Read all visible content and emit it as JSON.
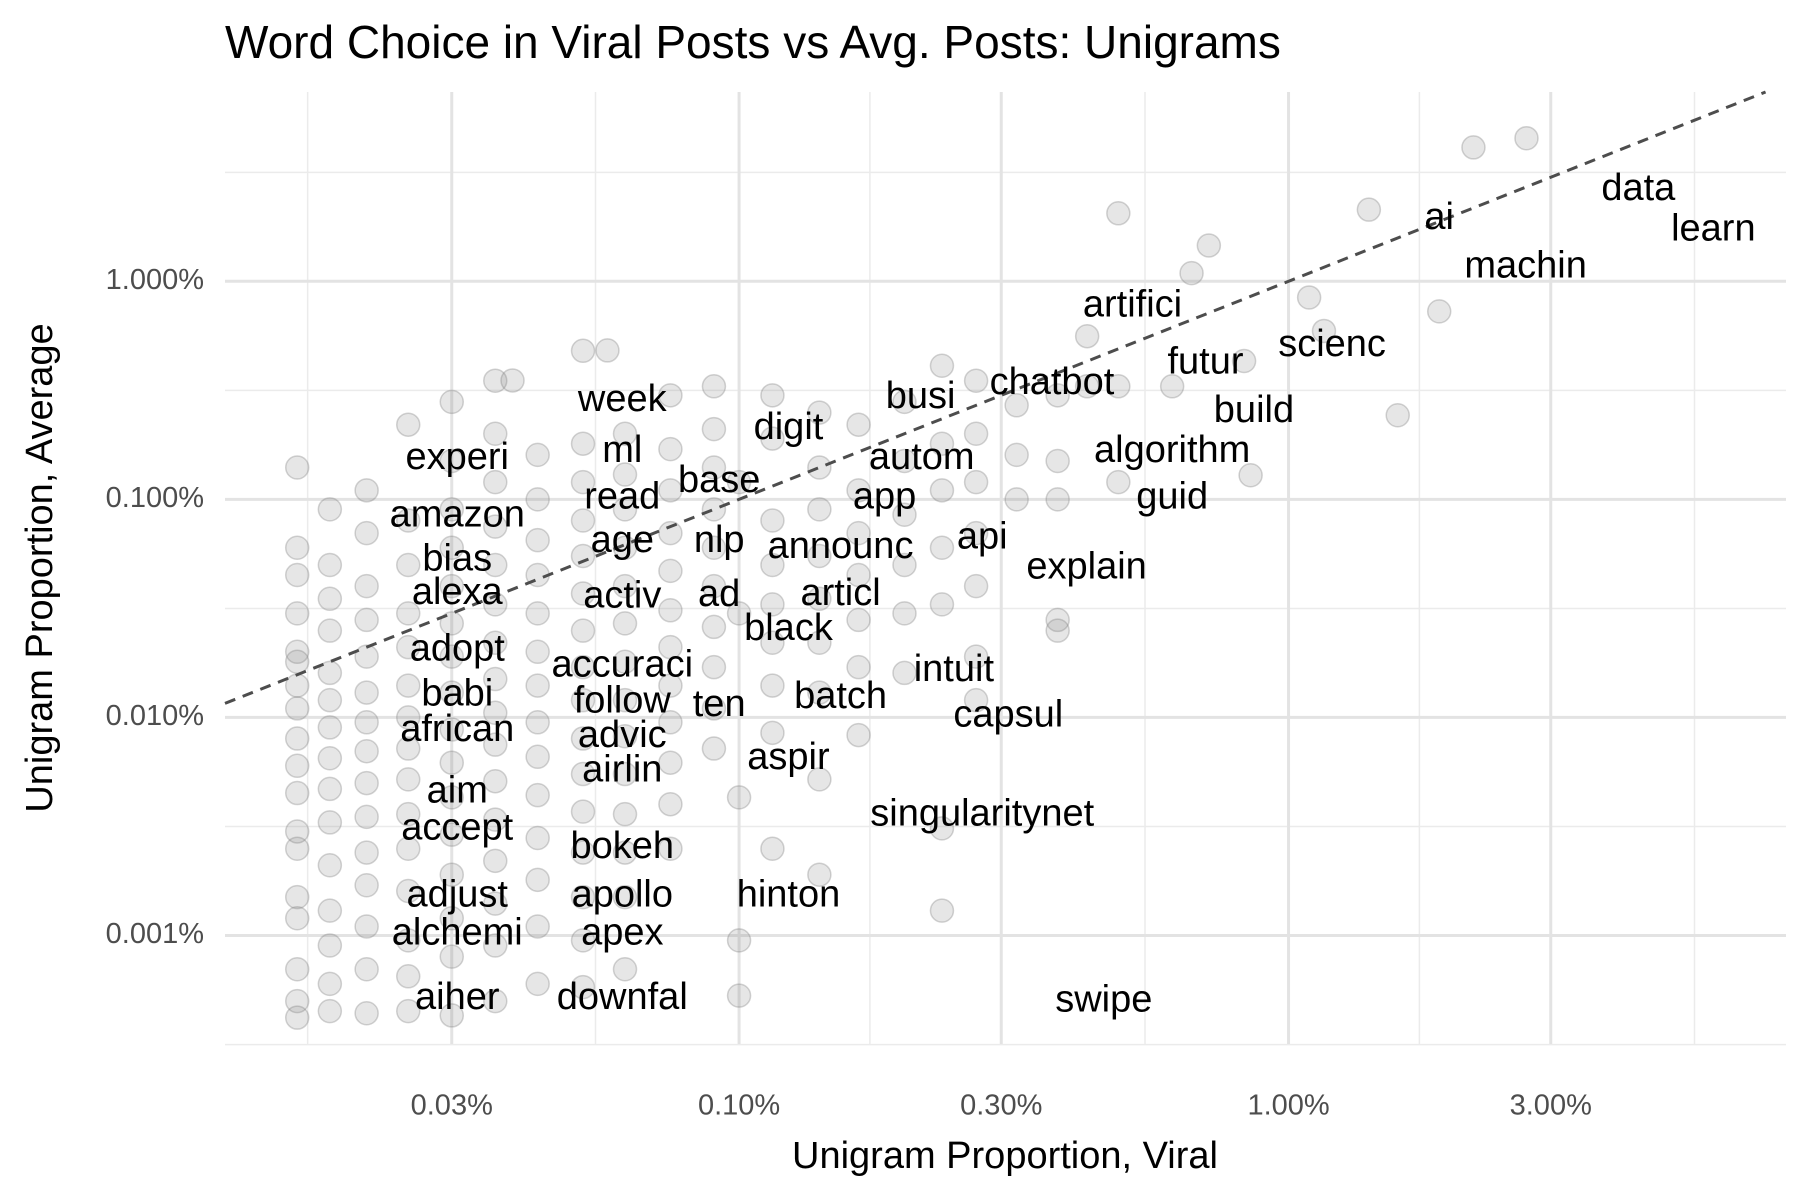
{
  "chart_data": {
    "type": "scatter",
    "title": "Word Choice in Viral Posts vs Avg. Posts: Unigrams",
    "x_label": "Unigram Proportion, Viral",
    "y_label": "Unigram Proportion, Average",
    "log_x": true,
    "log_y": true,
    "grid": true,
    "diagonal": true,
    "color": "#808080",
    "xlim": [
      0.0116,
      8.04
    ],
    "ylim": [
      0.000318,
      7.38
    ],
    "xticks": [
      {
        "value": 0.03,
        "label": "0.03%"
      },
      {
        "value": 0.1,
        "label": "0.10%"
      },
      {
        "value": 0.3,
        "label": "0.30%"
      },
      {
        "value": 1,
        "label": "1.00%"
      },
      {
        "value": 3,
        "label": "3.00%"
      }
    ],
    "yticks": [
      {
        "value": 0.001,
        "label": "0.001%"
      },
      {
        "value": 0.01,
        "label": "0.010%"
      },
      {
        "value": 0.1,
        "label": "0.100%"
      },
      {
        "value": 1,
        "label": "1.000%"
      }
    ],
    "x_minor_ticks": [
      0.0164,
      0.0548,
      0.173,
      0.548,
      1.73,
      5.48
    ],
    "y_minor_ticks": [
      0.000316,
      0.00316,
      0.0316,
      0.316,
      3.16
    ],
    "points": [
      {
        "x": 0.0157,
        "y": [
          0.14,
          0.06,
          0.045,
          0.03,
          0.02,
          0.018,
          0.014,
          0.011,
          0.008,
          0.006,
          0.0045,
          0.003,
          0.0025,
          0.0015,
          0.0012,
          0.0007,
          0.0005,
          0.00042
        ]
      },
      {
        "x": 0.018,
        "y": [
          0.09,
          0.05,
          0.035,
          0.025,
          0.016,
          0.012,
          0.009,
          0.0065,
          0.0047,
          0.0033,
          0.0021,
          0.0013,
          0.0009,
          0.0006,
          0.00045
        ]
      },
      {
        "x": 0.021,
        "y": [
          0.11,
          0.07,
          0.04,
          0.028,
          0.019,
          0.013,
          0.0095,
          0.007,
          0.005,
          0.0035,
          0.0024,
          0.0017,
          0.0011,
          0.0007,
          0.00044
        ]
      },
      {
        "x": 0.025,
        "y": [
          0.22,
          0.08,
          0.05,
          0.03,
          0.021,
          0.014,
          0.01,
          0.0072,
          0.0052,
          0.0036,
          0.0025,
          0.0016,
          0.00095,
          0.00065,
          0.00045
        ]
      },
      {
        "x": 0.03,
        "y": [
          0.28,
          0.15,
          0.09,
          0.06,
          0.04,
          0.027,
          0.019,
          0.013,
          0.0088,
          0.0062,
          0.0043,
          0.0029,
          0.0019,
          0.0012,
          0.0008,
          0.00043
        ]
      },
      {
        "x": 0.036,
        "y": [
          0.35,
          0.2,
          0.12,
          0.075,
          0.05,
          0.033,
          0.022,
          0.015,
          0.0105,
          0.0075,
          0.0051,
          0.0034,
          0.0022,
          0.0014,
          0.0009,
          0.0005
        ]
      },
      {
        "x": 0.043,
        "y": [
          0.16,
          0.1,
          0.065,
          0.045,
          0.03,
          0.02,
          0.014,
          0.0095,
          0.0066,
          0.0044,
          0.0028,
          0.0018,
          0.0011,
          0.0006
        ]
      },
      {
        "x": 0.052,
        "y": [
          0.48,
          0.18,
          0.12,
          0.08,
          0.055,
          0.037,
          0.025,
          0.017,
          0.012,
          0.008,
          0.0055,
          0.0037,
          0.0024,
          0.0015,
          0.00095,
          0.00058
        ]
      },
      {
        "x": 0.062,
        "y": [
          0.2,
          0.13,
          0.09,
          0.06,
          0.04,
          0.027,
          0.018,
          0.012,
          0.0082,
          0.0055,
          0.0036,
          0.0024,
          0.0015,
          0.0007
        ]
      },
      {
        "x": 0.075,
        "y": [
          0.3,
          0.17,
          0.11,
          0.07,
          0.047,
          0.031,
          0.021,
          0.014,
          0.0095,
          0.0062,
          0.004,
          0.0025
        ]
      },
      {
        "x": 0.09,
        "y": [
          0.33,
          0.21,
          0.14,
          0.09,
          0.06,
          0.04,
          0.026,
          0.017,
          0.011,
          0.0072
        ]
      },
      {
        "x": 0.1,
        "y": [
          0.00095,
          0.00053,
          0.0043,
          0.03,
          0.12
        ]
      },
      {
        "x": 0.115,
        "y": [
          0.3,
          0.19,
          0.08,
          0.05,
          0.033,
          0.022,
          0.014,
          0.0085,
          0.0025
        ]
      },
      {
        "x": 0.14,
        "y": [
          0.25,
          0.14,
          0.09,
          0.055,
          0.035,
          0.022,
          0.013,
          0.0052,
          0.0019
        ]
      },
      {
        "x": 0.165,
        "y": [
          0.22,
          0.11,
          0.07,
          0.045,
          0.028,
          0.017,
          0.0083
        ]
      },
      {
        "x": 0.2,
        "y": [
          0.28,
          0.15,
          0.085,
          0.05,
          0.03,
          0.016
        ]
      },
      {
        "x": 0.234,
        "y": [
          0.41,
          0.18,
          0.11,
          0.06,
          0.033,
          0.0031,
          0.0013
        ]
      },
      {
        "x": 0.27,
        "y": [
          0.35,
          0.2,
          0.12,
          0.07,
          0.04,
          0.019,
          0.012
        ]
      },
      {
        "x": 0.32,
        "y": [
          0.27,
          0.16,
          0.1
        ]
      },
      {
        "x": 0.38,
        "y": [
          0.3,
          0.15,
          0.1,
          0.028,
          0.025
        ]
      },
      {
        "x": 0.43,
        "y": [
          0.56,
          0.33
        ]
      },
      {
        "x": 0.49,
        "y": [
          2.05,
          0.33,
          0.12
        ]
      },
      {
        "x": 0.614,
        "y": [
          0.33
        ]
      },
      {
        "x": 0.666,
        "y": [
          1.09
        ]
      },
      {
        "x": 0.716,
        "y": [
          1.46
        ]
      },
      {
        "x": 0.83,
        "y": [
          0.431
        ]
      },
      {
        "x": 0.853,
        "y": [
          0.129
        ]
      },
      {
        "x": 1.09,
        "y": [
          0.843
        ]
      },
      {
        "x": 1.16,
        "y": [
          0.592
        ]
      },
      {
        "x": 1.4,
        "y": [
          2.13
        ]
      },
      {
        "x": 1.58,
        "y": [
          0.243
        ]
      },
      {
        "x": 1.88,
        "y": [
          0.728
        ]
      },
      {
        "x": 2.17,
        "y": [
          4.11
        ]
      },
      {
        "x": 2.71,
        "y": [
          4.53
        ]
      },
      {
        "x": 0.0576,
        "y": [
          0.482
        ]
      },
      {
        "x": 0.0387,
        "y": [
          0.351
        ]
      }
    ],
    "labels": [
      {
        "text": "data",
        "x": 4.33,
        "y": 2.62
      },
      {
        "text": "learn",
        "x": 5.93,
        "y": 1.71
      },
      {
        "text": "ai",
        "x": 1.88,
        "y": 1.93
      },
      {
        "text": "machin",
        "x": 2.7,
        "y": 1.16
      },
      {
        "text": "artifici",
        "x": 0.52,
        "y": 0.765
      },
      {
        "text": "scienc",
        "x": 1.2,
        "y": 0.506
      },
      {
        "text": "futur",
        "x": 0.706,
        "y": 0.421
      },
      {
        "text": "chatbot",
        "x": 0.371,
        "y": 0.338
      },
      {
        "text": "busi",
        "x": 0.214,
        "y": 0.292
      },
      {
        "text": "build",
        "x": 0.865,
        "y": 0.252
      },
      {
        "text": "week",
        "x": 0.0613,
        "y": 0.282
      },
      {
        "text": "digit",
        "x": 0.123,
        "y": 0.21
      },
      {
        "text": "algorithm",
        "x": 0.614,
        "y": 0.165
      },
      {
        "text": "autom",
        "x": 0.215,
        "y": 0.153
      },
      {
        "text": "experi",
        "x": 0.0307,
        "y": 0.153
      },
      {
        "text": "ml",
        "x": 0.0613,
        "y": 0.165
      },
      {
        "text": "base",
        "x": 0.092,
        "y": 0.12
      },
      {
        "text": "read",
        "x": 0.0613,
        "y": 0.101
      },
      {
        "text": "app",
        "x": 0.184,
        "y": 0.101
      },
      {
        "text": "guid",
        "x": 0.614,
        "y": 0.101
      },
      {
        "text": "amazon",
        "x": 0.0307,
        "y": 0.0833
      },
      {
        "text": "nlp",
        "x": 0.092,
        "y": 0.0637
      },
      {
        "text": "age",
        "x": 0.0613,
        "y": 0.0637
      },
      {
        "text": "announc",
        "x": 0.153,
        "y": 0.06
      },
      {
        "text": "api",
        "x": 0.277,
        "y": 0.066
      },
      {
        "text": "bias",
        "x": 0.0307,
        "y": 0.0525
      },
      {
        "text": "explain",
        "x": 0.429,
        "y": 0.0482
      },
      {
        "text": "alexa",
        "x": 0.0307,
        "y": 0.0368
      },
      {
        "text": "activ",
        "x": 0.0613,
        "y": 0.0355
      },
      {
        "text": "ad",
        "x": 0.092,
        "y": 0.036
      },
      {
        "text": "articl",
        "x": 0.153,
        "y": 0.0364
      },
      {
        "text": "black",
        "x": 0.123,
        "y": 0.0252
      },
      {
        "text": "adopt",
        "x": 0.0307,
        "y": 0.0203
      },
      {
        "text": "accuraci",
        "x": 0.0613,
        "y": 0.0171
      },
      {
        "text": "intuit",
        "x": 0.246,
        "y": 0.0163
      },
      {
        "text": "babi",
        "x": 0.0307,
        "y": 0.0126
      },
      {
        "text": "batch",
        "x": 0.153,
        "y": 0.0123
      },
      {
        "text": "follow",
        "x": 0.0613,
        "y": 0.0117
      },
      {
        "text": "ten",
        "x": 0.092,
        "y": 0.0113
      },
      {
        "text": "capsul",
        "x": 0.309,
        "y": 0.0101
      },
      {
        "text": "african",
        "x": 0.0307,
        "y": 0.00865
      },
      {
        "text": "advic",
        "x": 0.0613,
        "y": 0.00813
      },
      {
        "text": "aspir",
        "x": 0.123,
        "y": 0.00645
      },
      {
        "text": "airlin",
        "x": 0.0613,
        "y": 0.00564
      },
      {
        "text": "aim",
        "x": 0.0307,
        "y": 0.00453
      },
      {
        "text": "singularitynet",
        "x": 0.277,
        "y": 0.00355
      },
      {
        "text": "accept",
        "x": 0.0307,
        "y": 0.00307
      },
      {
        "text": "bokeh",
        "x": 0.0613,
        "y": 0.00252
      },
      {
        "text": "adjust",
        "x": 0.0307,
        "y": 0.00151
      },
      {
        "text": "apollo",
        "x": 0.0613,
        "y": 0.00151
      },
      {
        "text": "hinton",
        "x": 0.123,
        "y": 0.00151
      },
      {
        "text": "alchemi",
        "x": 0.0307,
        "y": 0.00101
      },
      {
        "text": "apex",
        "x": 0.0613,
        "y": 0.00101
      },
      {
        "text": "aiher",
        "x": 0.0307,
        "y": 0.000512
      },
      {
        "text": "downfal",
        "x": 0.0613,
        "y": 0.000512
      },
      {
        "text": "swipe",
        "x": 0.461,
        "y": 0.000499
      }
    ]
  }
}
